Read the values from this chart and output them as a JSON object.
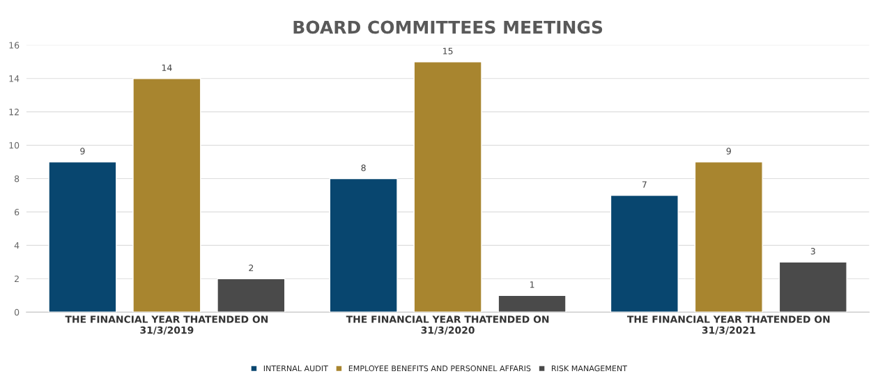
{
  "chart_data": {
    "type": "bar",
    "title": "BOARD COMMITTEES MEETINGS",
    "categories": [
      "THE FINANCIAL YEAR THATENDED ON\n31/3/2019",
      "THE FINANCIAL YEAR THATENDED ON\n31/3/2020",
      "THE FINANCIAL YEAR THATENDED ON\n31/3/2021"
    ],
    "series": [
      {
        "name": "INTERNAL AUDIT",
        "color": "#08466f",
        "values": [
          9,
          8,
          7
        ]
      },
      {
        "name": "EMPLOYEE BENEFITS AND PERSONNEL AFFARIS",
        "color": "#a8852f",
        "values": [
          14,
          15,
          9
        ]
      },
      {
        "name": "RISK MANAGEMENT",
        "color": "#4a4a4a",
        "values": [
          2,
          1,
          3
        ]
      }
    ],
    "ylim": [
      0,
      16
    ],
    "yticks": [
      0,
      2,
      4,
      6,
      8,
      10,
      12,
      14,
      16
    ],
    "grid": "y",
    "legend": "bottom",
    "data_labels": true
  }
}
